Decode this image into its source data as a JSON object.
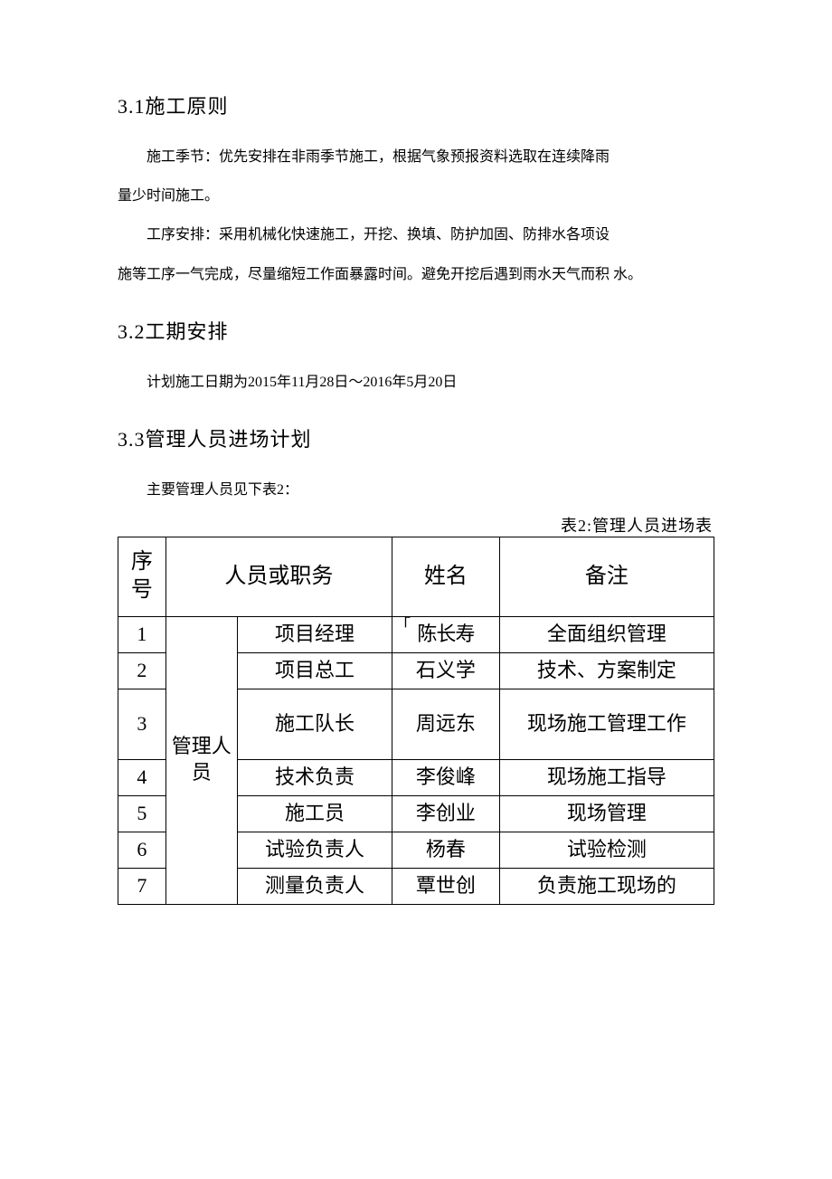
{
  "s31": {
    "heading": "3.1施工原则",
    "p1": "施工季节：优先安排在非雨季节施工，根据气象预报资料选取在连续降雨",
    "p1b": "量少时间施工。",
    "p2": "工序安排：采用机械化快速施工，开挖、换填、防护加固、防排水各项设",
    "p2b": "施等工序一气完成，尽量缩短工作面暴露时间。避免开挖后遇到雨水天气而积 水。"
  },
  "s32": {
    "heading": "3.2工期安排",
    "p1": "计划施工日期为2015年11月28日～2016年5月20日"
  },
  "s33": {
    "heading": "3.3管理人员进场计划",
    "p1": "主要管理人员见下表2：",
    "caption": "表2:管理人员进场表"
  },
  "table": {
    "headers": {
      "seq": "序号",
      "role": "人员或职务",
      "name": "姓名",
      "note": "备注"
    },
    "group_label": "管理人员",
    "rows": [
      {
        "seq": "1",
        "role": "项目经理",
        "name": "陈长寿",
        "note": "全面组织管理"
      },
      {
        "seq": "2",
        "role": "项目总工",
        "name": "石义学",
        "note": "技术、方案制定"
      },
      {
        "seq": "3",
        "role": "施工队长",
        "name": "周远东",
        "note": "现场施工管理工作"
      },
      {
        "seq": "4",
        "role": "技术负责",
        "name": "李俊峰",
        "note": "现场施工指导"
      },
      {
        "seq": "5",
        "role": "施工员",
        "name": "李创业",
        "note": "现场管理"
      },
      {
        "seq": "6",
        "role": "试验负责人",
        "name": "杨春",
        "note": "试验检测"
      },
      {
        "seq": "7",
        "role": "测量负责人",
        "name": "覃世创",
        "note": "负责施工现场的"
      }
    ]
  },
  "style": {
    "text_color": "#000000",
    "border_color": "#000000",
    "background": "#ffffff",
    "heading_fontsize": 22,
    "body_fontsize": 16,
    "table_fontsize": 22
  }
}
